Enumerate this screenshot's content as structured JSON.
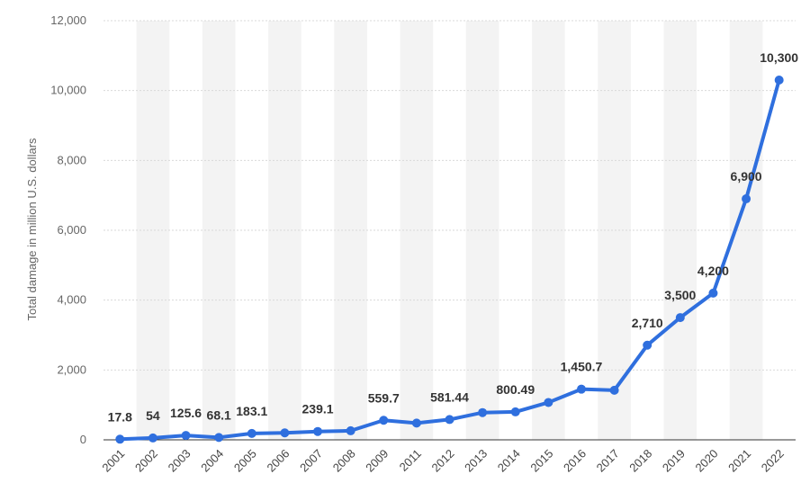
{
  "chart_data": {
    "type": "line",
    "title": "",
    "xlabel": "",
    "ylabel": "Total damage in million U.S. dollars",
    "ylim": [
      0,
      12000
    ],
    "yticks": [
      0,
      2000,
      4000,
      6000,
      8000,
      10000,
      12000
    ],
    "ytick_labels": [
      "0",
      "2,000",
      "4,000",
      "6,000",
      "8,000",
      "10,000",
      "12,000"
    ],
    "grid": true,
    "legend": "none",
    "line_color": "#2f6fde",
    "band_color": "#f3f3f3",
    "categories": [
      "2001",
      "2002",
      "2003",
      "2004",
      "2005",
      "2006",
      "2007",
      "2008",
      "2009",
      "2011",
      "2012",
      "2013",
      "2014",
      "2015",
      "2016",
      "2017",
      "2018",
      "2019",
      "2020",
      "2021",
      "2022"
    ],
    "series": [
      {
        "values": [
          17.8,
          54,
          125.6,
          68.1,
          183.1,
          200,
          239.1,
          260,
          559.7,
          480,
          581.44,
          780,
          800.49,
          1070,
          1450.7,
          1420,
          2710,
          3500,
          4200,
          6900,
          10300
        ],
        "labels": [
          "17.8",
          "54",
          "125.6",
          "68.1",
          "183.1",
          "",
          "239.1",
          "",
          "559.7",
          "",
          "581.44",
          "",
          "800.49",
          "",
          "1,450.7",
          "",
          "2,710",
          "3,500",
          "4,200",
          "6,900",
          "10,300"
        ]
      }
    ]
  }
}
